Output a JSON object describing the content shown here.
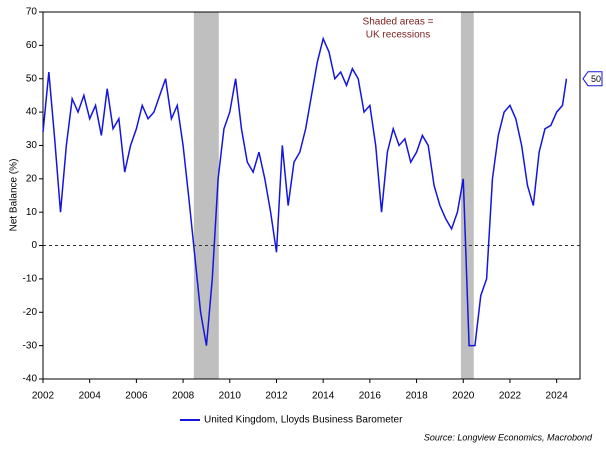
{
  "chart_data": {
    "type": "line",
    "y_label": "Net Balance (%)",
    "annotation": [
      "Shaded areas =",
      "UK recessions"
    ],
    "source": "Source: Longview Economics, Macrobond",
    "legend": "bottom",
    "xlim": [
      2002,
      2025
    ],
    "xticks": [
      2002,
      2004,
      2006,
      2008,
      2010,
      2012,
      2014,
      2016,
      2018,
      2020,
      2022,
      2024
    ],
    "ylim": [
      -40,
      70
    ],
    "yticks": [
      -40,
      -30,
      -20,
      -10,
      0,
      10,
      20,
      30,
      40,
      50,
      60,
      70
    ],
    "recessions": [
      [
        2008.46,
        2009.53
      ],
      [
        2019.9,
        2020.45
      ]
    ],
    "x": [
      2002.0,
      2002.25,
      2002.5,
      2002.75,
      2003.0,
      2003.25,
      2003.5,
      2003.75,
      2004.0,
      2004.25,
      2004.5,
      2004.75,
      2005.0,
      2005.25,
      2005.5,
      2005.75,
      2006.0,
      2006.25,
      2006.5,
      2006.75,
      2007.0,
      2007.25,
      2007.5,
      2007.75,
      2008.0,
      2008.25,
      2008.5,
      2008.75,
      2009.0,
      2009.25,
      2009.5,
      2009.75,
      2010.0,
      2010.25,
      2010.5,
      2010.75,
      2011.0,
      2011.25,
      2011.5,
      2011.75,
      2012.0,
      2012.25,
      2012.5,
      2012.75,
      2013.0,
      2013.25,
      2013.5,
      2013.75,
      2014.0,
      2014.25,
      2014.5,
      2014.75,
      2015.0,
      2015.25,
      2015.5,
      2015.75,
      2016.0,
      2016.25,
      2016.5,
      2016.75,
      2017.0,
      2017.25,
      2017.5,
      2017.75,
      2018.0,
      2018.25,
      2018.5,
      2018.75,
      2019.0,
      2019.25,
      2019.5,
      2019.75,
      2020.0,
      2020.25,
      2020.5,
      2020.75,
      2021.0,
      2021.25,
      2021.5,
      2021.75,
      2022.0,
      2022.25,
      2022.5,
      2022.75,
      2023.0,
      2023.25,
      2023.5,
      2023.75,
      2024.0,
      2024.25,
      2024.42
    ],
    "series": [
      {
        "name": "United Kingdom, Lloyds Business Barometer",
        "color": "#1515e0",
        "values": [
          34,
          52,
          32,
          10,
          30,
          44,
          40,
          45,
          38,
          42,
          33,
          47,
          35,
          38,
          22,
          30,
          35,
          42,
          38,
          40,
          45,
          50,
          38,
          42,
          30,
          14,
          -3,
          -20,
          -30,
          -10,
          20,
          35,
          40,
          50,
          35,
          25,
          22,
          28,
          20,
          10,
          -2,
          30,
          12,
          25,
          28,
          35,
          45,
          55,
          62,
          58,
          50,
          52,
          48,
          53,
          50,
          40,
          42,
          30,
          10,
          28,
          35,
          30,
          32,
          25,
          28,
          33,
          30,
          18,
          12,
          8,
          5,
          10,
          20,
          -30,
          -30,
          -15,
          -10,
          20,
          33,
          40,
          42,
          38,
          30,
          18,
          12,
          28,
          35,
          36,
          40,
          42,
          50
        ]
      }
    ]
  }
}
